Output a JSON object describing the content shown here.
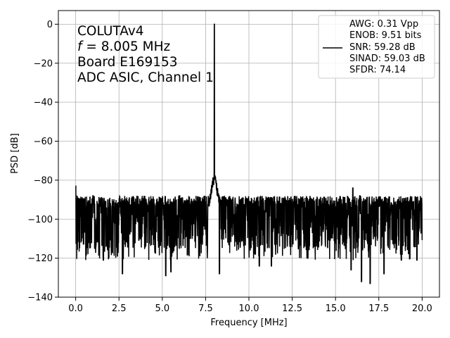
{
  "chart_data": {
    "type": "line",
    "xlabel": "Frequency [MHz]",
    "ylabel": "PSD [dB]",
    "xlim": [
      -1.0,
      21.0
    ],
    "ylim": [
      -140,
      7
    ],
    "xticks": [
      0.0,
      2.5,
      5.0,
      7.5,
      10.0,
      12.5,
      15.0,
      17.5,
      20.0
    ],
    "xtick_labels": [
      "0.0",
      "2.5",
      "5.0",
      "7.5",
      "10.0",
      "12.5",
      "15.0",
      "17.5",
      "20.0"
    ],
    "yticks": [
      0,
      -20,
      -40,
      -60,
      -80,
      -100,
      -120,
      -140
    ],
    "ytick_labels": [
      "0",
      "−20",
      "−40",
      "−60",
      "−80",
      "−100",
      "−120",
      "−140"
    ],
    "grid": true,
    "line_color": "#000000",
    "annotation": {
      "line1": "COLUTAv4",
      "line2_italic": "f",
      "line2_rest": " = 8.005 MHz",
      "line3": "Board E169153",
      "line4": "ADC ASIC, Channel 1"
    },
    "legend": {
      "placement": "top-right",
      "entries": [
        "AWG: 0.31 Vpp",
        "ENOB: 9.51 bits",
        "SNR: 59.28 dB",
        "SINAD: 59.03 dB",
        "SFDR: 74.14"
      ]
    },
    "series": [
      {
        "noise_floor_db": -101,
        "noise_range_db": [
          -133,
          -83
        ],
        "fundamental_mhz": 8.005,
        "fundamental_db": 0,
        "spurs": [
          {
            "x": 0.0,
            "y": -83
          },
          {
            "x": 1.0,
            "y": -88
          },
          {
            "x": 6.0,
            "y": -88
          },
          {
            "x": 16.0,
            "y": -84
          },
          {
            "x": 16.4,
            "y": -88
          },
          {
            "x": 17.0,
            "y": -90
          },
          {
            "x": 18.6,
            "y": -90
          },
          {
            "x": 19.5,
            "y": -91
          }
        ],
        "dips": [
          {
            "x": 1.6,
            "y": -121
          },
          {
            "x": 2.7,
            "y": -128
          },
          {
            "x": 5.2,
            "y": -129
          },
          {
            "x": 5.5,
            "y": -127
          },
          {
            "x": 8.3,
            "y": -128
          },
          {
            "x": 10.6,
            "y": -124
          },
          {
            "x": 11.3,
            "y": -124
          },
          {
            "x": 13.4,
            "y": -120
          },
          {
            "x": 15.9,
            "y": -126
          },
          {
            "x": 16.5,
            "y": -132
          },
          {
            "x": 17.0,
            "y": -133
          },
          {
            "x": 17.8,
            "y": -128
          },
          {
            "x": 18.8,
            "y": -121
          },
          {
            "x": 19.7,
            "y": -121
          }
        ]
      }
    ]
  }
}
